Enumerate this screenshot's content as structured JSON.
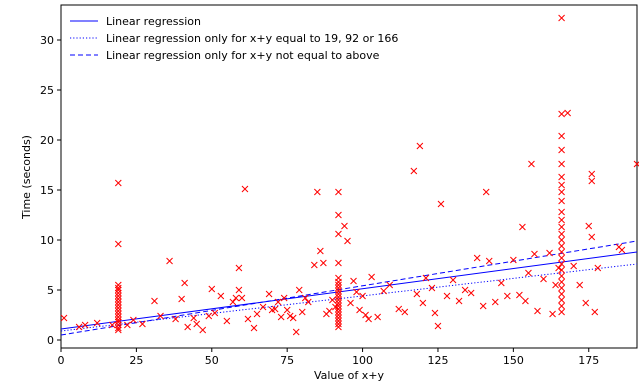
{
  "chart_data": {
    "type": "scatter",
    "title": "",
    "xlabel": "Value of x+y",
    "ylabel": "Time (seconds)",
    "xlim": [
      0,
      191
    ],
    "ylim": [
      -0.8,
      33.5
    ],
    "xticks": [
      0,
      25,
      50,
      75,
      100,
      125,
      150,
      175
    ],
    "yticks": [
      0,
      5,
      10,
      15,
      20,
      25,
      30
    ],
    "grid": false,
    "legend_position": "upper-left",
    "colors": {
      "points": "#ff0000",
      "lines": "#0000ff"
    },
    "legend": [
      {
        "label": "Linear regression",
        "style": "solid"
      },
      {
        "label": "Linear regression only for x+y equal to 19, 92 or 166",
        "style": "dotted"
      },
      {
        "label": "Linear regression only for x+y not equal to above",
        "style": "dashed"
      }
    ],
    "series": [
      {
        "kind": "points",
        "marker": "x",
        "points": [
          [
            1,
            2.2
          ],
          [
            6,
            1.3
          ],
          [
            8,
            1.5
          ],
          [
            12,
            1.7
          ],
          [
            17,
            1.5
          ],
          [
            19,
            15.7
          ],
          [
            19,
            9.6
          ],
          [
            19,
            5.5
          ],
          [
            19,
            5.2
          ],
          [
            19,
            5.0
          ],
          [
            19,
            4.7
          ],
          [
            19,
            4.4
          ],
          [
            19,
            4.1
          ],
          [
            19,
            3.8
          ],
          [
            19,
            3.5
          ],
          [
            19,
            3.2
          ],
          [
            19,
            2.9
          ],
          [
            19,
            2.6
          ],
          [
            19,
            2.3
          ],
          [
            19,
            2.0
          ],
          [
            19,
            1.8
          ],
          [
            19,
            1.5
          ],
          [
            19,
            1.2
          ],
          [
            19,
            1.0
          ],
          [
            22,
            1.5
          ],
          [
            24,
            2.0
          ],
          [
            27,
            1.6
          ],
          [
            31,
            3.9
          ],
          [
            33,
            2.4
          ],
          [
            36,
            7.9
          ],
          [
            38,
            2.1
          ],
          [
            40,
            4.1
          ],
          [
            41,
            5.7
          ],
          [
            42,
            1.3
          ],
          [
            44,
            2.2
          ],
          [
            45,
            1.6
          ],
          [
            47,
            1.0
          ],
          [
            49,
            2.4
          ],
          [
            50,
            5.1
          ],
          [
            51,
            2.7
          ],
          [
            53,
            4.4
          ],
          [
            55,
            1.9
          ],
          [
            57,
            3.8
          ],
          [
            58,
            4.2
          ],
          [
            59,
            7.2
          ],
          [
            59,
            5.0
          ],
          [
            60,
            4.2
          ],
          [
            61,
            15.1
          ],
          [
            62,
            2.1
          ],
          [
            64,
            1.2
          ],
          [
            65,
            2.6
          ],
          [
            67,
            3.3
          ],
          [
            69,
            4.6
          ],
          [
            70,
            3.0
          ],
          [
            71,
            3.1
          ],
          [
            72,
            3.8
          ],
          [
            73,
            2.3
          ],
          [
            74,
            4.2
          ],
          [
            75,
            3.0
          ],
          [
            76,
            2.4
          ],
          [
            77,
            2.2
          ],
          [
            78,
            0.8
          ],
          [
            79,
            5.0
          ],
          [
            80,
            2.8
          ],
          [
            81,
            4.2
          ],
          [
            82,
            3.8
          ],
          [
            84,
            7.5
          ],
          [
            85,
            14.8
          ],
          [
            86,
            8.9
          ],
          [
            87,
            7.7
          ],
          [
            88,
            2.6
          ],
          [
            89,
            2.9
          ],
          [
            90,
            4.0
          ],
          [
            91,
            3.3
          ],
          [
            92,
            14.8
          ],
          [
            92,
            12.5
          ],
          [
            92,
            10.6
          ],
          [
            92,
            7.7
          ],
          [
            92,
            6.2
          ],
          [
            92,
            5.8
          ],
          [
            92,
            5.5
          ],
          [
            92,
            5.2
          ],
          [
            92,
            4.9
          ],
          [
            92,
            4.6
          ],
          [
            92,
            4.3
          ],
          [
            92,
            4.0
          ],
          [
            92,
            3.7
          ],
          [
            92,
            3.4
          ],
          [
            92,
            3.1
          ],
          [
            92,
            2.8
          ],
          [
            92,
            2.5
          ],
          [
            92,
            2.2
          ],
          [
            92,
            1.9
          ],
          [
            92,
            1.6
          ],
          [
            92,
            1.3
          ],
          [
            94,
            11.4
          ],
          [
            95,
            9.9
          ],
          [
            96,
            3.7
          ],
          [
            97,
            5.9
          ],
          [
            98,
            4.8
          ],
          [
            99,
            3.0
          ],
          [
            100,
            4.4
          ],
          [
            101,
            2.5
          ],
          [
            102,
            2.1
          ],
          [
            103,
            6.3
          ],
          [
            105,
            2.3
          ],
          [
            107,
            4.9
          ],
          [
            109,
            5.5
          ],
          [
            112,
            3.1
          ],
          [
            114,
            2.8
          ],
          [
            117,
            16.9
          ],
          [
            118,
            4.6
          ],
          [
            119,
            19.4
          ],
          [
            120,
            3.7
          ],
          [
            121,
            6.2
          ],
          [
            123,
            5.2
          ],
          [
            124,
            2.7
          ],
          [
            125,
            1.4
          ],
          [
            126,
            13.6
          ],
          [
            128,
            4.4
          ],
          [
            130,
            6.0
          ],
          [
            132,
            3.9
          ],
          [
            134,
            5.0
          ],
          [
            136,
            4.7
          ],
          [
            138,
            8.2
          ],
          [
            140,
            3.4
          ],
          [
            141,
            14.8
          ],
          [
            142,
            7.9
          ],
          [
            144,
            3.8
          ],
          [
            146,
            5.7
          ],
          [
            148,
            4.4
          ],
          [
            150,
            8.0
          ],
          [
            152,
            4.5
          ],
          [
            153,
            11.3
          ],
          [
            154,
            3.9
          ],
          [
            155,
            6.7
          ],
          [
            156,
            17.6
          ],
          [
            157,
            8.6
          ],
          [
            158,
            2.9
          ],
          [
            160,
            6.1
          ],
          [
            162,
            8.7
          ],
          [
            163,
            2.6
          ],
          [
            164,
            5.5
          ],
          [
            165,
            7.2
          ],
          [
            166,
            32.2
          ],
          [
            166,
            22.6
          ],
          [
            166,
            20.4
          ],
          [
            166,
            19.0
          ],
          [
            166,
            17.6
          ],
          [
            166,
            16.3
          ],
          [
            166,
            15.5
          ],
          [
            166,
            14.8
          ],
          [
            166,
            13.9
          ],
          [
            166,
            12.8
          ],
          [
            166,
            12.0
          ],
          [
            166,
            11.3
          ],
          [
            166,
            10.6
          ],
          [
            166,
            10.0
          ],
          [
            166,
            9.4
          ],
          [
            166,
            8.8
          ],
          [
            166,
            8.2
          ],
          [
            166,
            7.6
          ],
          [
            166,
            7.0
          ],
          [
            166,
            6.4
          ],
          [
            166,
            5.8
          ],
          [
            166,
            5.2
          ],
          [
            166,
            4.6
          ],
          [
            166,
            4.0
          ],
          [
            166,
            3.4
          ],
          [
            166,
            2.8
          ],
          [
            168,
            22.7
          ],
          [
            170,
            7.4
          ],
          [
            172,
            5.5
          ],
          [
            174,
            3.7
          ],
          [
            175,
            11.4
          ],
          [
            176,
            16.6
          ],
          [
            176,
            15.9
          ],
          [
            176,
            10.3
          ],
          [
            177,
            2.8
          ],
          [
            178,
            7.2
          ],
          [
            185,
            9.3
          ],
          [
            186,
            9.0
          ],
          [
            191,
            17.6
          ]
        ]
      },
      {
        "kind": "line",
        "name": "Linear regression",
        "style": "solid",
        "x": [
          0,
          191
        ],
        "y": [
          1.1,
          8.8
        ]
      },
      {
        "kind": "line",
        "name": "Linear regression only for x+y equal to 19, 92 or 166",
        "style": "dotted",
        "x": [
          0,
          191
        ],
        "y": [
          0.9,
          7.6
        ]
      },
      {
        "kind": "line",
        "name": "Linear regression only for x+y not equal to above",
        "style": "dashed",
        "x": [
          0,
          191
        ],
        "y": [
          0.5,
          9.9
        ]
      }
    ]
  }
}
